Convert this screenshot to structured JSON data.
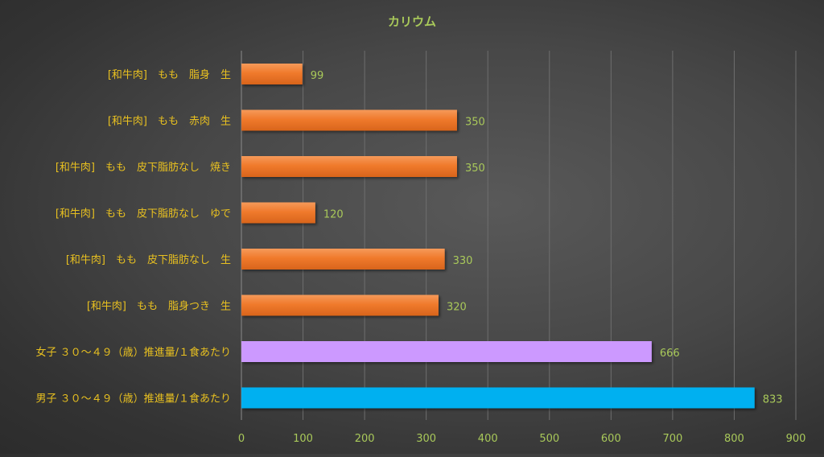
{
  "chart_data": {
    "type": "bar",
    "orientation": "horizontal",
    "title": "カリウム",
    "categories": [
      "[和牛肉]　もも　脂身　生",
      "[和牛肉]　もも　赤肉　生",
      "[和牛肉]　もも　皮下脂肪なし　焼き",
      "[和牛肉]　もも　皮下脂肪なし　ゆで",
      "[和牛肉]　もも　皮下脂肪なし　生",
      "[和牛肉]　もも　脂身つき　生",
      "女子 ３０～４９（歳）推進量/１食あたり",
      "男子 ３０～４９（歳）推進量/１食あたり"
    ],
    "values": [
      99,
      350,
      350,
      120,
      330,
      320,
      666,
      833
    ],
    "bar_colors": [
      "#f07a2c",
      "#f07a2c",
      "#f07a2c",
      "#f07a2c",
      "#f07a2c",
      "#f07a2c",
      "#cc99ff",
      "#00b0f0"
    ],
    "data_labels": [
      "99",
      "350",
      "350",
      "120",
      "330",
      "320",
      "666",
      "833"
    ],
    "xlim": [
      0,
      900
    ],
    "xticks": [
      0,
      100,
      200,
      300,
      400,
      500,
      600,
      700,
      800,
      900
    ],
    "xtick_labels": [
      "0",
      "100",
      "200",
      "300",
      "400",
      "500",
      "600",
      "700",
      "800",
      "900"
    ],
    "grid": true,
    "legend": "none",
    "colors": {
      "text": "#a9c95a",
      "label_text": "#e8c020",
      "grid": "#6e6e6e"
    }
  }
}
